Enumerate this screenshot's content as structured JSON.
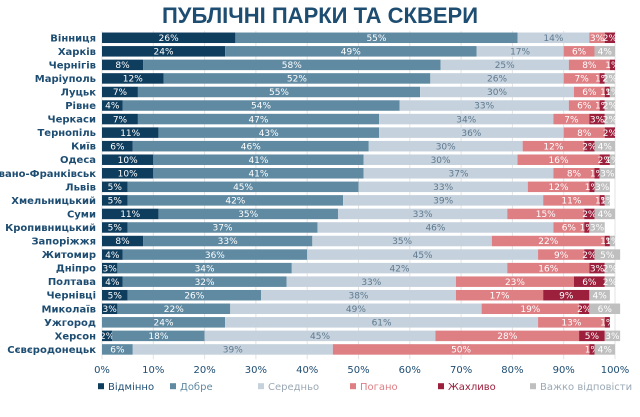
{
  "chart_data": {
    "type": "bar",
    "orientation": "horizontal",
    "stacked": true,
    "title": "ПУБЛІЧНІ ПАРКИ ТА СКВЕРИ",
    "categories": [
      "Вінниця",
      "Харків",
      "Чернігів",
      "Маріуполь",
      "Луцьк",
      "Рівне",
      "Черкаси",
      "Тернопіль",
      "Київ",
      "Одеса",
      "Івано-Франківськ",
      "Львів",
      "Хмельницький",
      "Суми",
      "Кропивницький",
      "Запоріжжя",
      "Житомир",
      "Дніпро",
      "Полтава",
      "Чернівці",
      "Миколаїв",
      "Ужгород",
      "Херсон",
      "Сєвєродонецьк"
    ],
    "series": [
      {
        "name": "Відмінно",
        "color": "#0f3d5e",
        "text_color": "#ffffff",
        "values": [
          26,
          24,
          8,
          12,
          7,
          4,
          7,
          11,
          6,
          10,
          10,
          5,
          5,
          11,
          5,
          8,
          4,
          3,
          4,
          5,
          3,
          0,
          2,
          0
        ],
        "labels": [
          "26%",
          "24%",
          "8%",
          "12%",
          "7%",
          "4%",
          "7%",
          "11%",
          "6%",
          "10%",
          "10%",
          "5%",
          "5%",
          "11%",
          "5%",
          "8%",
          "4%",
          "3%",
          "4%",
          "5%",
          "3%",
          "",
          "2%",
          ""
        ]
      },
      {
        "name": "Добре",
        "color": "#5f8aa2",
        "text_color": "#ffffff",
        "values": [
          55,
          49,
          58,
          52,
          55,
          54,
          47,
          43,
          46,
          41,
          41,
          45,
          42,
          35,
          37,
          33,
          36,
          34,
          32,
          26,
          22,
          24,
          18,
          6
        ],
        "labels": [
          "55%",
          "49%",
          "58%",
          "52%",
          "55%",
          "54%",
          "47%",
          "43%",
          "46%",
          "41%",
          "41%",
          "45%",
          "42%",
          "35%",
          "37%",
          "33%",
          "36%",
          "34%",
          "32%",
          "26%",
          "22%",
          "24%",
          "18%",
          "6%"
        ]
      },
      {
        "name": "Середньо",
        "color": "#c5d1dc",
        "text_color": "#5f7a90",
        "values": [
          14,
          17,
          25,
          26,
          30,
          33,
          34,
          36,
          30,
          30,
          37,
          33,
          39,
          33,
          46,
          35,
          45,
          42,
          33,
          38,
          49,
          61,
          45,
          39
        ],
        "labels": [
          "14%",
          "17%",
          "25%",
          "26%",
          "30%",
          "33%",
          "34%",
          "36%",
          "30%",
          "30%",
          "37%",
          "33%",
          "39%",
          "33%",
          "46%",
          "35%",
          "45%",
          "42%",
          "33%",
          "38%",
          "49%",
          "61%",
          "45%",
          "39%"
        ]
      },
      {
        "name": "Погано",
        "color": "#de7f84",
        "text_color": "#ffffff",
        "values": [
          3,
          6,
          8,
          7,
          6,
          6,
          7,
          8,
          12,
          16,
          8,
          12,
          11,
          15,
          6,
          22,
          9,
          16,
          23,
          17,
          19,
          13,
          28,
          50
        ],
        "labels": [
          "3%",
          "6%",
          "8%",
          "7%",
          "6%",
          "6%",
          "7%",
          "8%",
          "12%",
          "16%",
          "8%",
          "12%",
          "11%",
          "15%",
          "6%",
          "22%",
          "9%",
          "16%",
          "23%",
          "17%",
          "19%",
          "13%",
          "28%",
          "50%"
        ]
      },
      {
        "name": "Жахливо",
        "color": "#9c1f3c",
        "text_color": "#ffffff",
        "values": [
          2,
          0,
          1,
          1,
          1,
          1,
          3,
          2,
          2,
          2,
          1,
          1,
          1,
          2,
          1,
          1,
          2,
          3,
          6,
          9,
          2,
          1,
          5,
          1
        ],
        "labels": [
          "2%",
          "",
          "1%",
          "1%",
          "1%",
          "1%",
          "3%",
          "2%",
          "2%",
          "2%",
          "1%",
          "1%",
          "1%",
          "2%",
          "1%",
          "1%",
          "2%",
          "3%",
          "6%",
          "9%",
          "2%",
          "1%",
          "5%",
          "1%"
        ]
      },
      {
        "name": "Важко відповісти",
        "color": "#bfbfbf",
        "text_color": "#ffffff",
        "values": [
          0,
          4,
          0,
          2,
          1,
          2,
          2,
          0,
          4,
          1,
          3,
          3,
          1,
          4,
          3,
          1,
          5,
          2,
          2,
          4,
          6,
          0,
          3,
          4
        ],
        "labels": [
          "",
          "4%",
          "",
          "2%",
          "1%",
          "2%",
          "2%",
          "",
          "4%",
          "1%",
          "3%",
          "3%",
          "1%",
          "4%",
          "3%",
          "1%",
          "5%",
          "2%",
          "2%",
          "4%",
          "6%",
          "",
          "3%",
          "4%"
        ]
      }
    ],
    "xlim": [
      0,
      100
    ],
    "xticks": [
      "0%",
      "10%",
      "20%",
      "30%",
      "40%",
      "50%",
      "60%",
      "70%",
      "80%",
      "90%",
      "100%"
    ],
    "grid": true,
    "legend_position": "bottom"
  }
}
